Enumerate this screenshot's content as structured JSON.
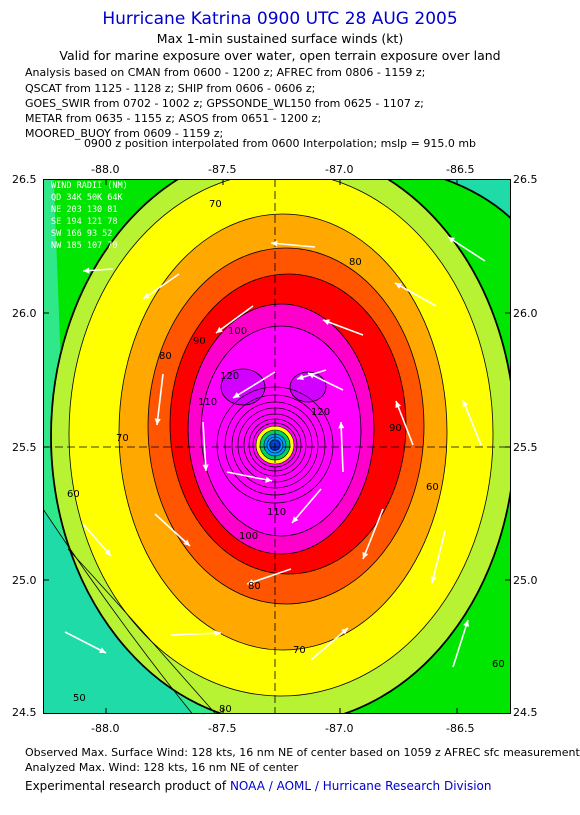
{
  "header": {
    "title": "Hurricane Katrina 0900 UTC 28 AUG 2005",
    "subtitle1": "Max 1-min sustained surface winds (kt)",
    "subtitle2": "Valid for marine exposure over water, open terrain exposure over land",
    "analysis_lines": [
      "Analysis based on  CMAN from 0600 - 1200 z;  AFREC from 0806 - 1159 z;",
      "QSCAT from 1125 - 1128 z;  SHIP from 0606 - 0606 z;",
      "GOES_SWIR from 0702 - 1002 z;  GPSSONDE_WL150 from 0625 - 1107 z;",
      "METAR from 0635 - 1155 z;  ASOS from 0651 - 1200 z;",
      "MOORED_BUOY from 0609 - 1159 z;"
    ],
    "interpolation_note": "0900 z position interpolated from 0600 Interpolation; mslp = 915.0 mb"
  },
  "map": {
    "lon_ticks": [
      "-88.0",
      "-87.5",
      "-87.0",
      "-86.5"
    ],
    "lat_ticks": [
      "26.5",
      "26.0",
      "25.5",
      "25.0",
      "24.5"
    ],
    "lon_range": [
      -88.25,
      -86.25
    ],
    "lat_range": [
      24.5,
      26.5
    ],
    "center": {
      "lon": -87.27,
      "lat": 25.5
    },
    "wind_radii": {
      "title": "WIND RADII (NM)",
      "header": "QD  34K  50K  64K",
      "rows": [
        "NE  203  130   81",
        "SE  194  121   78",
        "SW  166   93   52",
        "NW  185  107   70"
      ]
    },
    "contour_labels": [
      "70",
      "80",
      "90",
      "100",
      "110",
      "120",
      "60",
      "50",
      "80",
      "70",
      "90",
      "60",
      "110",
      "100",
      "120",
      "60",
      "70",
      "80"
    ],
    "colors": {
      "lt40": "#1fdba8",
      "c40_50": "#2fe88a",
      "c50_60": "#00e600",
      "c60_64": "#b7f233",
      "c64_70": "#ffff00",
      "c70_80": "#ffa800",
      "c80_90": "#ff5500",
      "c90_100": "#ff0000",
      "c100_110": "#ff00cc",
      "c110_120": "#ff00ff",
      "c120plus": "#d100ff",
      "eye": "#0099ff",
      "arrow": "#ffffff"
    }
  },
  "footer": {
    "observed": "Observed Max. Surface Wind: 128 kts, 16 nm NE of center based on 1059 z AFREC sfc measurement",
    "analyzed": "Analyzed Max. Wind: 128 kts, 16 nm NE of center",
    "credit_prefix": "Experimental research product of",
    "credit_link": "NOAA / AOML / Hurricane Research Division"
  }
}
